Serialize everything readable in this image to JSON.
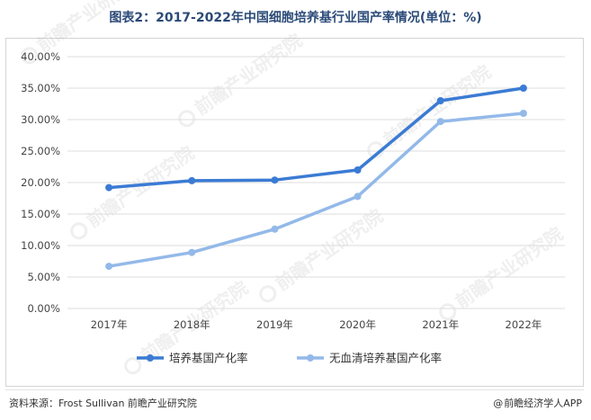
{
  "title": "图表2：2017-2022年中国细胞培养基行业国产率情况(单位：%)",
  "source": "资料来源：Frost Sullivan 前瞻产业研究院",
  "credit_symbol": "@",
  "credit_text": "前瞻经济学人APP",
  "watermark_text": "前瞻产业研究院",
  "colors": {
    "series1": "#3b7bd4",
    "series2": "#93b9e9",
    "grid": "#dcdcdc",
    "title": "#2b4a78"
  },
  "chart_data": {
    "type": "line",
    "title": "",
    "xlabel": "",
    "ylabel": "",
    "categories": [
      "2017年",
      "2018年",
      "2019年",
      "2020年",
      "2021年",
      "2022年"
    ],
    "y_ticks": [
      "0.00%",
      "5.00%",
      "10.00%",
      "15.00%",
      "20.00%",
      "25.00%",
      "30.00%",
      "35.00%",
      "40.00%"
    ],
    "ylim": [
      0,
      40
    ],
    "grid": "horizontal",
    "legend_position": "bottom",
    "series": [
      {
        "name": "培养基国产化率",
        "color": "#3b7bd4",
        "values": [
          19.2,
          20.3,
          20.4,
          22.0,
          33.0,
          35.0
        ]
      },
      {
        "name": "无血清培养基国产化率",
        "color": "#93b9e9",
        "values": [
          6.7,
          8.9,
          12.6,
          17.8,
          29.7,
          31.0
        ]
      }
    ]
  }
}
